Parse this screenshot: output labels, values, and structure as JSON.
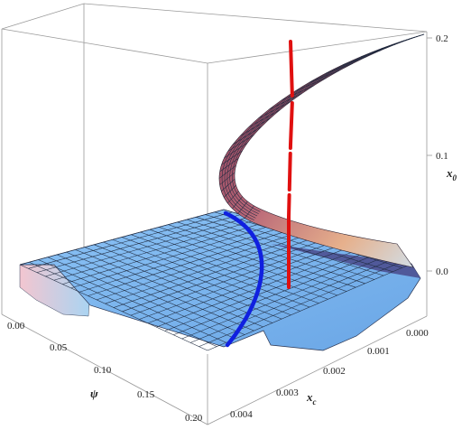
{
  "chart_data": {
    "type": "surface3d",
    "title": "",
    "axes": {
      "x_c": {
        "label": "x",
        "subscript": "c",
        "ticks": [
          "0.000",
          "0.001",
          "0.002",
          "0.003",
          "0.004"
        ],
        "range": [
          0.0,
          0.0045
        ]
      },
      "psi": {
        "label": "ψ",
        "ticks": [
          "0.00",
          "0.05",
          "0.10",
          "0.15",
          "0.20"
        ],
        "range": [
          0.0,
          0.2
        ]
      },
      "x_0": {
        "label": "x",
        "subscript": "0",
        "ticks": [
          "0.0",
          "0.1",
          "0.2"
        ],
        "range": [
          -0.04,
          0.2
        ]
      }
    },
    "surfaces": [
      {
        "name": "lower",
        "color": "#78b4f0",
        "description_level": "near x0 = 0, flat sheet with curled edges"
      },
      {
        "name": "upper",
        "color": "#b05070",
        "description_level": "rising fold from x0 ≈ 0.03 up to x0 = 0.2"
      }
    ],
    "curves": [
      {
        "color": "#1020e0",
        "psi": 0.03,
        "x_c": [
          0.0005,
          0.0045
        ],
        "x0": 0.0
      },
      {
        "color": "#e01010",
        "psi": 0.0,
        "x_c": 0.001,
        "x0": [
          -0.01,
          0.2
        ]
      }
    ],
    "box": true,
    "grid": false
  }
}
